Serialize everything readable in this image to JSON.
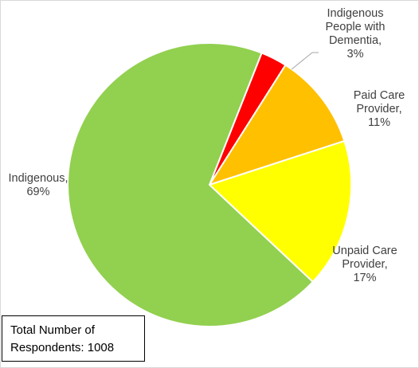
{
  "chart_data": {
    "type": "pie",
    "categories": [
      "Indigenous People with Dementia",
      "Paid Care Provider",
      "Unpaid Care Provider",
      "Indigenous"
    ],
    "values": [
      3,
      11,
      17,
      69
    ],
    "colors": [
      "#ff0000",
      "#ffc000",
      "#ffff00",
      "#92d050"
    ],
    "labels": [
      [
        "Indigenous",
        "People with",
        "Dementia,",
        "3%"
      ],
      [
        "Paid Care",
        "Provider,",
        "11%"
      ],
      [
        "Unpaid Care",
        "Provider,",
        "17%"
      ],
      [
        "Indigenous,",
        "69%"
      ]
    ],
    "legend": "none"
  },
  "note_box": {
    "line1": "Total Number of",
    "line2": "Respondents: 1008"
  }
}
